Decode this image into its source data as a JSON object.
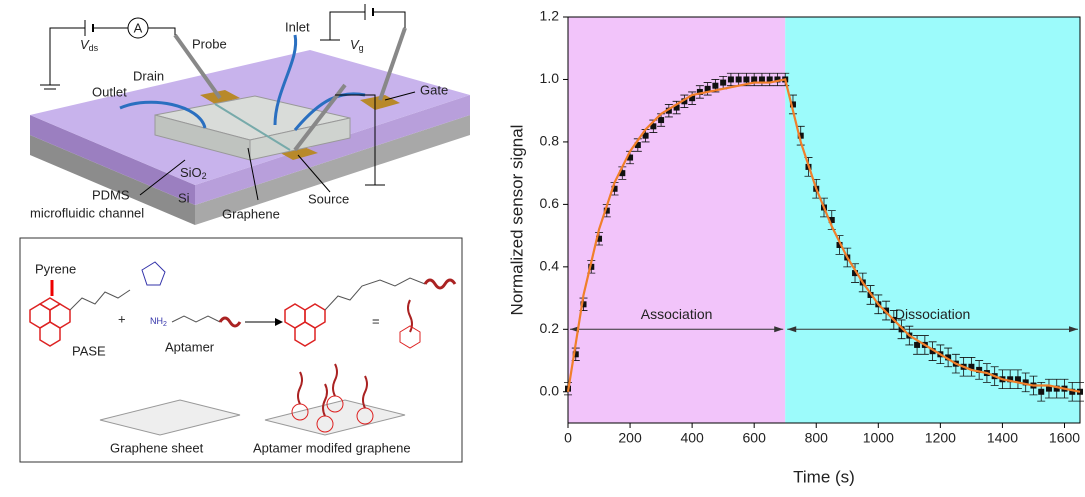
{
  "diagram": {
    "vds": [
      "V",
      "ds"
    ],
    "ammeter": "A",
    "probe": "Probe",
    "inlet": "Inlet",
    "vg": [
      "V",
      "g"
    ],
    "drain": "Drain",
    "outlet": "Outlet",
    "gate": "Gate",
    "sio2": [
      "SiO",
      "2"
    ],
    "si": "Si",
    "pdms": "PDMS",
    "channel": "microfluidic channel",
    "graphene": "Graphene",
    "source": "Source",
    "pyrene": "Pyrene",
    "pase": "PASE",
    "plus": "+",
    "nh2": [
      "NH",
      "2"
    ],
    "aptamer": "Aptamer",
    "equals": "=",
    "sheet": "Graphene sheet",
    "modified": "Aptamer modifed graphene"
  },
  "chart_data": {
    "type": "scatter",
    "xlabel": "Time (s)",
    "ylabel": "Normalized sensor signal",
    "xlim": [
      0,
      1650
    ],
    "ylim": [
      -0.1,
      1.2
    ],
    "xticks": [
      0,
      200,
      400,
      600,
      800,
      1000,
      1200,
      1400,
      1600
    ],
    "yticks": [
      {
        "value": 0,
        "label": "0.0"
      },
      0.2,
      0.4,
      0.6,
      0.8,
      {
        "value": 1,
        "label": "1.0"
      },
      1.2
    ],
    "regions": [
      {
        "label": "Association",
        "x": [
          0,
          700
        ],
        "y": 0.2,
        "color": "#f2c4fa"
      },
      {
        "label": "Dissociation",
        "x": [
          700,
          1650
        ],
        "y": 0.2,
        "color": "#9cfbfb"
      }
    ],
    "series": [
      {
        "type": "scatter",
        "color": "#111111",
        "x": [
          0,
          25,
          50,
          75,
          100,
          125,
          150,
          175,
          200,
          225,
          250,
          275,
          300,
          325,
          350,
          375,
          400,
          425,
          450,
          475,
          500,
          525,
          550,
          575,
          600,
          625,
          650,
          675,
          700,
          725,
          750,
          775,
          800,
          825,
          850,
          875,
          900,
          925,
          950,
          975,
          1000,
          1025,
          1050,
          1075,
          1100,
          1125,
          1150,
          1175,
          1200,
          1225,
          1250,
          1275,
          1300,
          1325,
          1350,
          1375,
          1400,
          1425,
          1450,
          1475,
          1500,
          1525,
          1550,
          1575,
          1600,
          1625,
          1650
        ],
        "values": [
          0.01,
          0.12,
          0.28,
          0.4,
          0.49,
          0.58,
          0.65,
          0.7,
          0.75,
          0.79,
          0.82,
          0.85,
          0.87,
          0.9,
          0.91,
          0.93,
          0.94,
          0.96,
          0.97,
          0.98,
          0.99,
          1.0,
          1.0,
          1.0,
          1.0,
          1.0,
          1.0,
          1.0,
          1.0,
          0.92,
          0.82,
          0.72,
          0.65,
          0.59,
          0.55,
          0.47,
          0.43,
          0.38,
          0.35,
          0.31,
          0.28,
          0.26,
          0.23,
          0.2,
          0.18,
          0.15,
          0.15,
          0.13,
          0.12,
          0.11,
          0.09,
          0.08,
          0.08,
          0.07,
          0.06,
          0.05,
          0.04,
          0.04,
          0.04,
          0.03,
          0.02,
          0.0,
          0.01,
          0.01,
          0.01,
          0.0,
          0.0
        ],
        "errors": [
          0.02,
          0.02,
          0.02,
          0.02,
          0.02,
          0.02,
          0.02,
          0.02,
          0.02,
          0.02,
          0.02,
          0.02,
          0.02,
          0.02,
          0.02,
          0.02,
          0.02,
          0.02,
          0.02,
          0.02,
          0.02,
          0.02,
          0.02,
          0.02,
          0.02,
          0.02,
          0.02,
          0.02,
          0.02,
          0.03,
          0.03,
          0.03,
          0.03,
          0.03,
          0.03,
          0.03,
          0.03,
          0.03,
          0.03,
          0.03,
          0.03,
          0.03,
          0.03,
          0.03,
          0.03,
          0.03,
          0.03,
          0.03,
          0.03,
          0.03,
          0.03,
          0.03,
          0.03,
          0.03,
          0.03,
          0.03,
          0.03,
          0.03,
          0.03,
          0.03,
          0.03,
          0.03,
          0.03,
          0.03,
          0.03,
          0.03,
          0.03
        ]
      },
      {
        "type": "line",
        "color": "#f07f2a",
        "x": [
          0,
          50,
          100,
          150,
          200,
          250,
          300,
          350,
          400,
          450,
          500,
          550,
          600,
          650,
          700,
          750,
          800,
          850,
          900,
          950,
          1000,
          1050,
          1100,
          1150,
          1200,
          1250,
          1300,
          1350,
          1400,
          1450,
          1500,
          1550,
          1600,
          1650
        ],
        "values": [
          0,
          0.31,
          0.52,
          0.67,
          0.77,
          0.84,
          0.89,
          0.92,
          0.95,
          0.96,
          0.97,
          0.98,
          0.99,
          0.99,
          1.0,
          0.8,
          0.65,
          0.53,
          0.43,
          0.35,
          0.28,
          0.23,
          0.18,
          0.15,
          0.12,
          0.09,
          0.07,
          0.06,
          0.04,
          0.03,
          0.02,
          0.02,
          0.01,
          0.0
        ]
      }
    ]
  }
}
